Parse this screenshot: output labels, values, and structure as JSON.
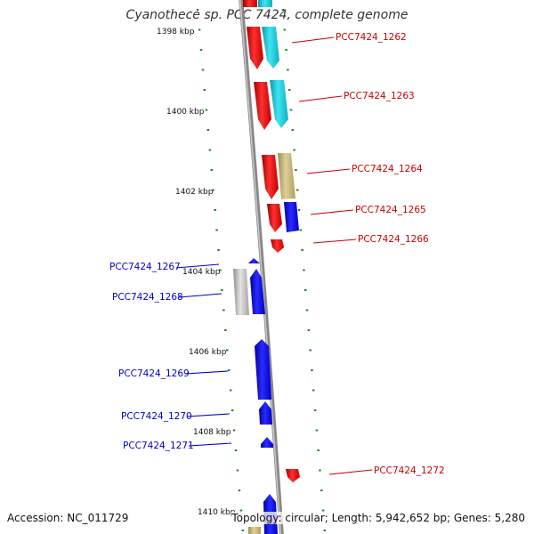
{
  "title": "Cyanothece sp. PCC 7424, complete genome",
  "footer": {
    "accession": "Accession: NC_011729",
    "summary": "Topology: circular; Length: 5,942,652 bp; Genes: 5,280"
  },
  "scale_labels": [
    "1398 kbp",
    "1400 kbp",
    "1402 kbp",
    "1404 kbp",
    "1406 kbp",
    "1408 kbp",
    "1410 kbp"
  ],
  "gene_labels_right": [
    "PCC7424_1262",
    "PCC7424_1263",
    "PCC7424_1264",
    "PCC7424_1265",
    "PCC7424_1266",
    "PCC7424_1272"
  ],
  "gene_labels_left": [
    "PCC7424_1267",
    "PCC7424_1268",
    "PCC7424_1269",
    "PCC7424_1270",
    "PCC7424_1271"
  ],
  "colors": {
    "forward_label": "#cc0000",
    "reverse_label": "#0000cc",
    "gene_red": "#ee1111",
    "gene_blue": "#1111ee",
    "gene_cyan": "#22ccdd",
    "gene_khaki": "#c8b878",
    "gene_grey": "#bbbbbb",
    "backbone": "#888888",
    "tick": "#228822"
  }
}
